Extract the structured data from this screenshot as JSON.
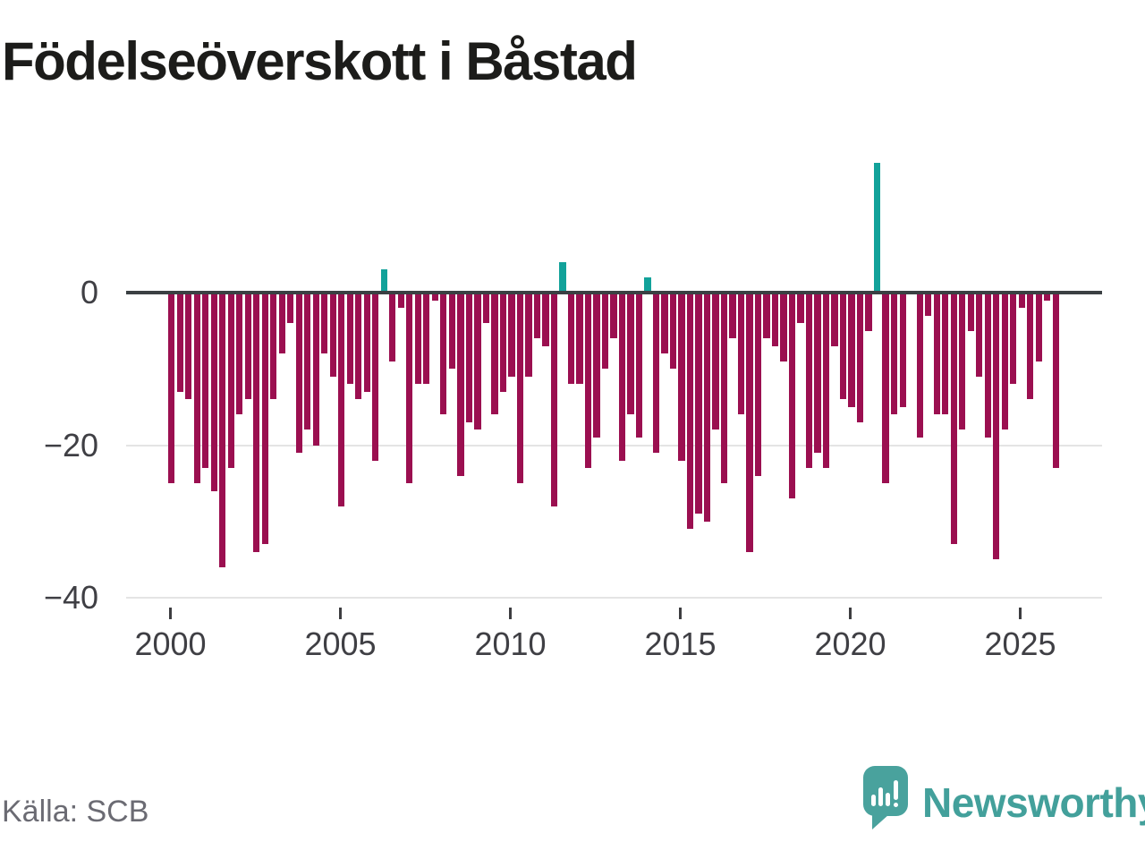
{
  "title": "Födelseöverskott i Båstad",
  "source": "Källa: SCB",
  "logo": {
    "brand": "Newsworthy",
    "icon": "newsworthy-speech-bubble-chart-icon"
  },
  "chart_data": {
    "type": "bar",
    "title": "Födelseöverskott i Båstad",
    "frequency": "quarterly",
    "start_period": "2000 Q1",
    "end_period": "2026 Q1",
    "x_tick_labels": [
      "2000",
      "2005",
      "2010",
      "2015",
      "2020",
      "2025"
    ],
    "y_ticks": [
      0,
      -20,
      -40
    ],
    "y_tick_labels": [
      "0",
      "−20",
      "−40"
    ],
    "ylim": [
      -42,
      18
    ],
    "grid": "horizontal-only",
    "legend": "none",
    "values": [
      -25,
      -13,
      -14,
      -25,
      -23,
      -26,
      -36,
      -23,
      -16,
      -14,
      -34,
      -33,
      -14,
      -8,
      -4,
      -21,
      -18,
      -20,
      -8,
      -11,
      -28,
      -12,
      -14,
      -13,
      -22,
      3,
      -9,
      -2,
      -25,
      -12,
      -12,
      -1,
      -16,
      -10,
      -24,
      -17,
      -18,
      -4,
      -16,
      -13,
      -11,
      -25,
      -11,
      -6,
      -7,
      -28,
      4,
      -12,
      -12,
      -23,
      -19,
      -10,
      -6,
      -22,
      -16,
      -19,
      2,
      -21,
      -8,
      -10,
      -22,
      -31,
      -29,
      -30,
      -18,
      -25,
      -6,
      -16,
      -34,
      -24,
      -6,
      -7,
      -9,
      -27,
      -4,
      -23,
      -21,
      -23,
      -7,
      -14,
      -15,
      -17,
      -5,
      17,
      -25,
      -16,
      -15,
      0,
      -19,
      -3,
      -16,
      -16,
      -33,
      -18,
      -5,
      -11,
      -19,
      -35,
      -18,
      -12,
      -2,
      -14,
      -9,
      -1,
      -23
    ],
    "colors": {
      "negative": "#9b0f50",
      "positive": "#12a29a",
      "zero_axis": "#3b4043",
      "gridline": "#e4e4e4",
      "axis_label": "#3f3f44",
      "title": "#1c1c1a",
      "source_text": "#6b6b73",
      "brand": "#43a09b"
    }
  }
}
